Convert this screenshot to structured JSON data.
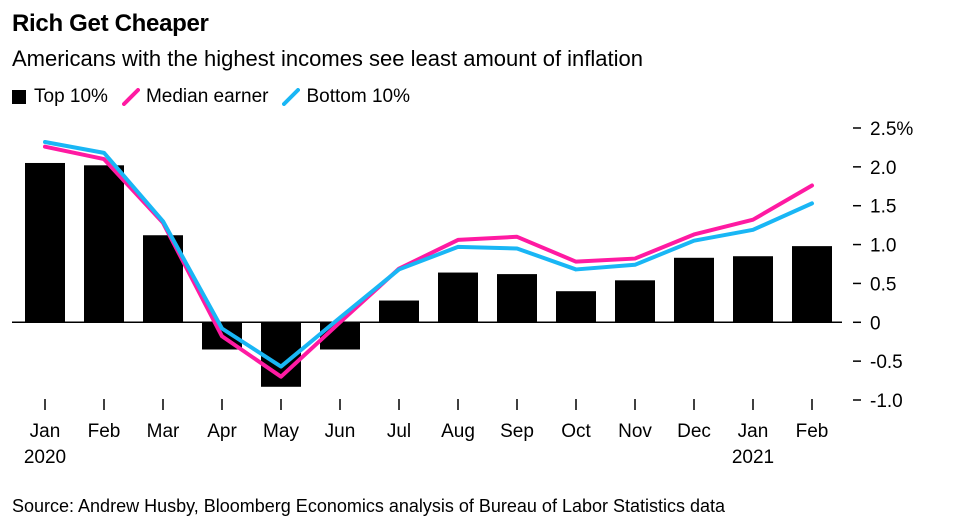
{
  "header": {
    "title": "Rich Get Cheaper",
    "subtitle": "Americans with the highest incomes see least amount of inflation"
  },
  "source": "Source: Andrew Husby, Bloomberg Economics analysis of Bureau of Labor Statistics data",
  "chart_data": {
    "type": "bar",
    "categories": [
      "Jan",
      "Feb",
      "Mar",
      "Apr",
      "May",
      "Jun",
      "Jul",
      "Aug",
      "Sep",
      "Oct",
      "Nov",
      "Dec",
      "Jan",
      "Feb"
    ],
    "year_labels": [
      "2020",
      "",
      "",
      "",
      "",
      "",
      "",
      "",
      "",
      "",
      "",
      "",
      "2021",
      ""
    ],
    "series": [
      {
        "name": "Top 10%",
        "kind": "bar",
        "color": "#000000",
        "values": [
          2.05,
          2.02,
          1.12,
          -0.35,
          -0.83,
          -0.35,
          0.28,
          0.64,
          0.62,
          0.4,
          0.54,
          0.83,
          0.85,
          0.98
        ]
      },
      {
        "name": "Median earner",
        "kind": "line",
        "color": "#ff1aa2",
        "values": [
          2.26,
          2.1,
          1.28,
          -0.18,
          -0.7,
          0.0,
          0.69,
          1.06,
          1.1,
          0.78,
          0.82,
          1.13,
          1.32,
          1.76
        ]
      },
      {
        "name": "Bottom 10%",
        "kind": "line",
        "color": "#19b6f5",
        "values": [
          2.32,
          2.18,
          1.3,
          -0.08,
          -0.57,
          0.06,
          0.68,
          0.97,
          0.95,
          0.68,
          0.74,
          1.05,
          1.19,
          1.53
        ]
      }
    ],
    "yticks": [
      {
        "value": 2.5,
        "label": "2.5%"
      },
      {
        "value": 2.0,
        "label": "2.0"
      },
      {
        "value": 1.5,
        "label": "1.5"
      },
      {
        "value": 1.0,
        "label": "1.0"
      },
      {
        "value": 0.5,
        "label": "0.5"
      },
      {
        "value": 0,
        "label": "0"
      },
      {
        "value": -0.5,
        "label": "-0.5"
      },
      {
        "value": -1.0,
        "label": "-1.0"
      }
    ],
    "ylim": [
      -1.0,
      2.5
    ],
    "axis_side": "right",
    "legend_position": "top-left"
  }
}
